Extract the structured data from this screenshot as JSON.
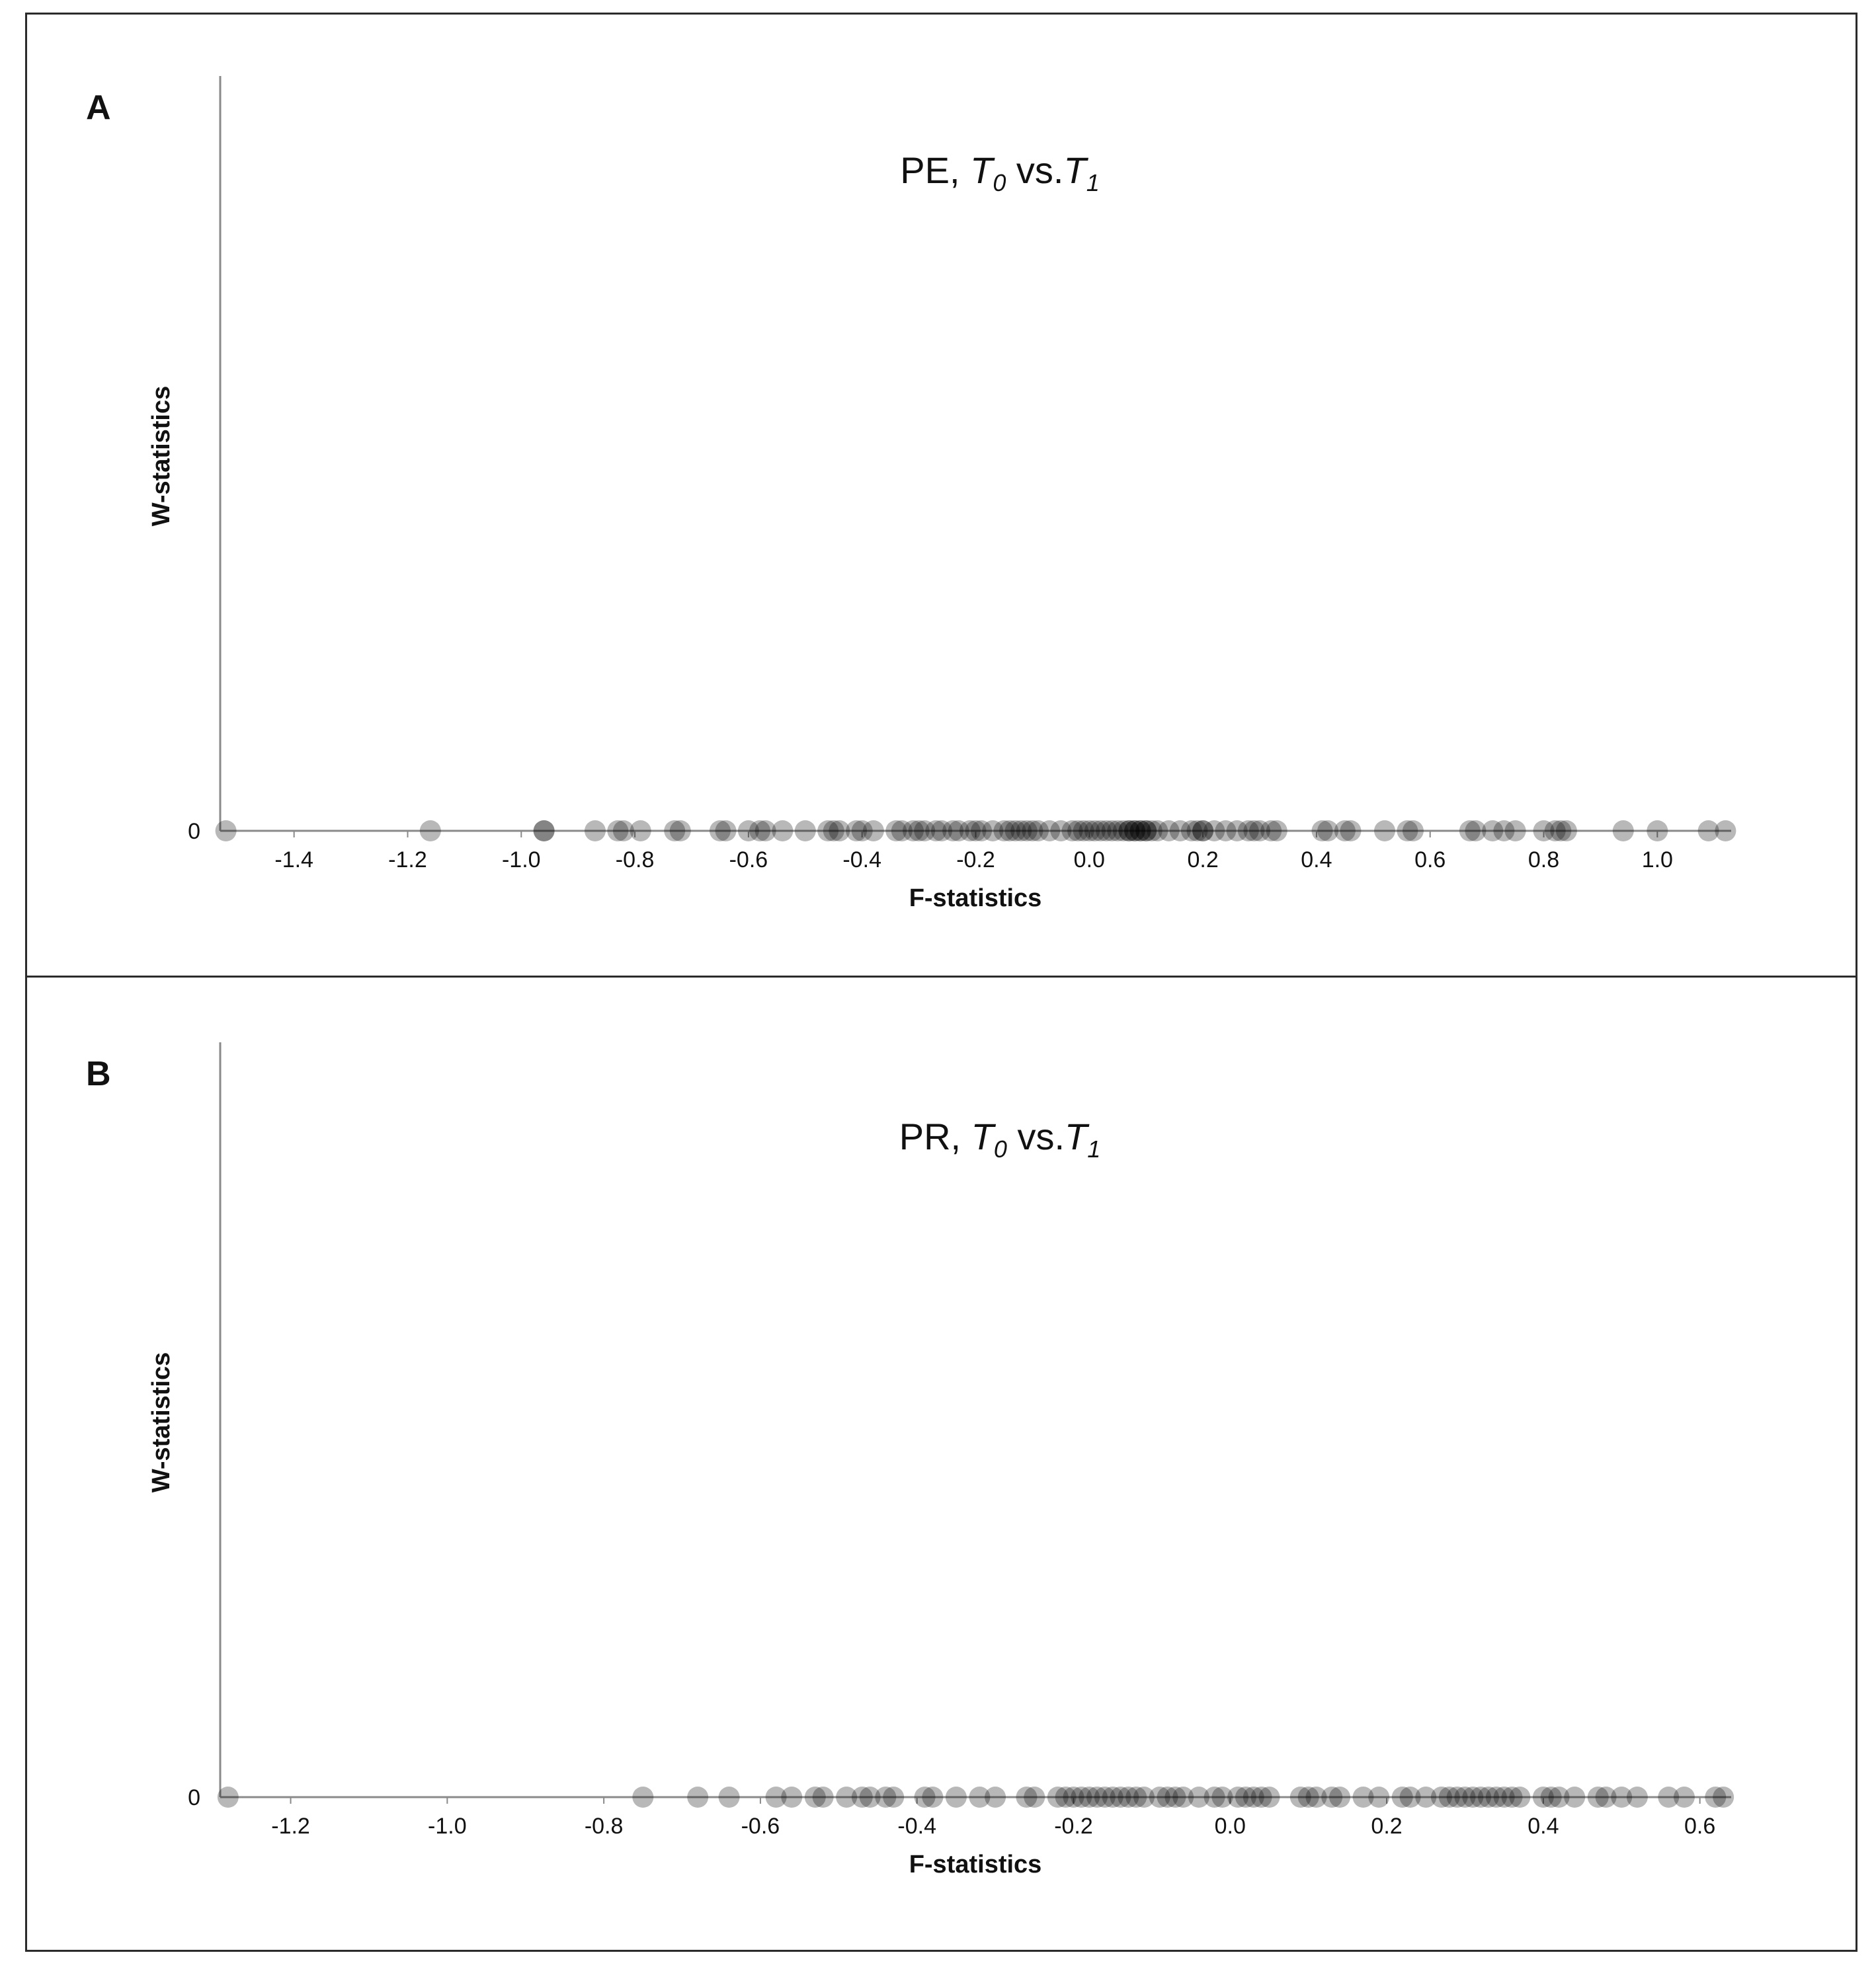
{
  "chart_data": [
    {
      "type": "scatter",
      "panel": "A",
      "title_parts": [
        "PE, ",
        "T",
        "0",
        " vs.",
        "T",
        "1"
      ],
      "xlabel": "F-statistics",
      "ylabel": "W-statistics",
      "xlim": [
        -1.53,
        1.13
      ],
      "y_ticks": [
        "0"
      ],
      "x_ticks": [
        {
          "value": -1.4,
          "label": "-1.4"
        },
        {
          "value": -1.2,
          "label": "-1.2"
        },
        {
          "value": -1.0,
          "label": "-1.0"
        },
        {
          "value": -0.8,
          "label": "-0.8"
        },
        {
          "value": -0.6,
          "label": "-0.6"
        },
        {
          "value": -0.4,
          "label": "-0.4"
        },
        {
          "value": -0.2,
          "label": "-0.2"
        },
        {
          "value": 0.0,
          "label": "0.0"
        },
        {
          "value": 0.2,
          "label": "0.2"
        },
        {
          "value": 0.4,
          "label": "0.4"
        },
        {
          "value": 0.6,
          "label": "0.6"
        },
        {
          "value": 0.8,
          "label": "0.8"
        },
        {
          "value": 1.0,
          "label": "1.0"
        }
      ],
      "grid": false,
      "points": {
        "y": 0,
        "x": [
          -1.52,
          -1.16,
          -0.96,
          -0.96,
          -0.87,
          -0.83,
          -0.82,
          -0.79,
          -0.73,
          -0.72,
          -0.65,
          -0.64,
          -0.6,
          -0.58,
          -0.57,
          -0.54,
          -0.5,
          -0.46,
          -0.45,
          -0.44,
          -0.41,
          -0.4,
          -0.38,
          -0.34,
          -0.33,
          -0.31,
          -0.3,
          -0.29,
          -0.27,
          -0.26,
          -0.24,
          -0.23,
          -0.21,
          -0.2,
          -0.19,
          -0.17,
          -0.15,
          -0.14,
          -0.13,
          -0.12,
          -0.11,
          -0.1,
          -0.09,
          -0.07,
          -0.05,
          -0.03,
          -0.02,
          -0.01,
          0.0,
          0.01,
          0.02,
          0.03,
          0.04,
          0.05,
          0.06,
          0.07,
          0.07,
          0.08,
          0.08,
          0.09,
          0.09,
          0.1,
          0.1,
          0.11,
          0.12,
          0.14,
          0.16,
          0.18,
          0.19,
          0.2,
          0.2,
          0.22,
          0.24,
          0.26,
          0.28,
          0.29,
          0.3,
          0.32,
          0.33,
          0.41,
          0.42,
          0.45,
          0.46,
          0.52,
          0.56,
          0.57,
          0.67,
          0.68,
          0.71,
          0.73,
          0.75,
          0.8,
          0.82,
          0.83,
          0.84,
          0.94,
          1.0,
          1.09,
          1.12
        ]
      }
    },
    {
      "type": "scatter",
      "panel": "B",
      "title_parts": [
        "PR, ",
        "T",
        "0",
        " vs.",
        "T",
        "1"
      ],
      "xlabel": "F-statistics",
      "ylabel": "W-statistics",
      "xlim": [
        -1.29,
        0.64
      ],
      "y_ticks": [
        "0"
      ],
      "x_ticks": [
        {
          "value": -1.2,
          "label": "-1.2"
        },
        {
          "value": -1.0,
          "label": "-1.0"
        },
        {
          "value": -0.8,
          "label": "-0.8"
        },
        {
          "value": -0.6,
          "label": "-0.6"
        },
        {
          "value": -0.4,
          "label": "-0.4"
        },
        {
          "value": -0.2,
          "label": "-0.2"
        },
        {
          "value": 0.0,
          "label": "0.0"
        },
        {
          "value": 0.2,
          "label": "0.2"
        },
        {
          "value": 0.4,
          "label": "0.4"
        },
        {
          "value": 0.6,
          "label": "0.6"
        }
      ],
      "grid": false,
      "points": {
        "y": 0,
        "x": [
          -1.28,
          -0.75,
          -0.68,
          -0.64,
          -0.58,
          -0.56,
          -0.53,
          -0.52,
          -0.49,
          -0.47,
          -0.46,
          -0.44,
          -0.43,
          -0.39,
          -0.38,
          -0.35,
          -0.32,
          -0.3,
          -0.26,
          -0.25,
          -0.22,
          -0.21,
          -0.2,
          -0.19,
          -0.18,
          -0.17,
          -0.16,
          -0.15,
          -0.14,
          -0.13,
          -0.12,
          -0.11,
          -0.09,
          -0.08,
          -0.07,
          -0.06,
          -0.04,
          -0.02,
          -0.01,
          0.01,
          0.02,
          0.03,
          0.04,
          0.05,
          0.09,
          0.1,
          0.11,
          0.13,
          0.14,
          0.17,
          0.19,
          0.22,
          0.23,
          0.25,
          0.27,
          0.28,
          0.29,
          0.3,
          0.31,
          0.32,
          0.33,
          0.34,
          0.35,
          0.36,
          0.37,
          0.4,
          0.41,
          0.42,
          0.44,
          0.47,
          0.48,
          0.5,
          0.52,
          0.56,
          0.58,
          0.62,
          0.63
        ]
      }
    }
  ]
}
